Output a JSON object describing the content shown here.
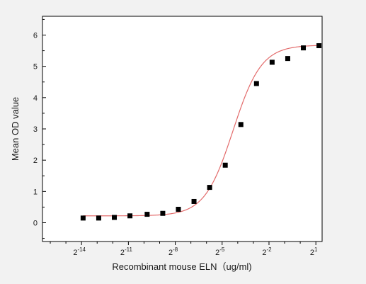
{
  "chart_data": {
    "type": "scatter",
    "title": "",
    "xlabel": "Recombinant mouse ELN（ug/ml)",
    "ylabel": "Mean OD value",
    "x_scale": "log2",
    "xlim_log2": [
      -16.5,
      1.4
    ],
    "ylim": [
      -0.6,
      6.6
    ],
    "x_ticks": [
      {
        "exp": -14,
        "base": "2",
        "sup": "-14"
      },
      {
        "exp": -11,
        "base": "2",
        "sup": "-11"
      },
      {
        "exp": -8,
        "base": "2",
        "sup": "-8"
      },
      {
        "exp": -5,
        "base": "2",
        "sup": "-5"
      },
      {
        "exp": -2,
        "base": "2",
        "sup": "-2"
      },
      {
        "exp": 1,
        "base": "2",
        "sup": "1"
      }
    ],
    "x_minor_ticks_log2": [
      -16,
      -15,
      -13,
      -12,
      -10,
      -9,
      -7,
      -6,
      -4,
      -3,
      -1,
      0
    ],
    "y_ticks": [
      0,
      1,
      2,
      3,
      4,
      5,
      6
    ],
    "grid": false,
    "legend": "none",
    "series": [
      {
        "marker": "square",
        "color": "#000000",
        "x_log2": [
          -13.9,
          -12.9,
          -11.9,
          -10.9,
          -9.8,
          -8.8,
          -7.8,
          -6.8,
          -5.8,
          -4.8,
          -3.8,
          -2.8,
          -1.8,
          -0.8,
          0.2,
          1.2
        ],
        "y": [
          0.15,
          0.15,
          0.17,
          0.22,
          0.27,
          0.3,
          0.43,
          0.68,
          1.13,
          1.84,
          3.14,
          4.45,
          5.13,
          5.25,
          5.59,
          5.66
        ]
      }
    ],
    "fit_curve": {
      "color": "#e36b6b",
      "model": "4PL",
      "bottom": 0.22,
      "top": 5.68,
      "log2_ec50": -4.3,
      "hill_slope_log2": 0.55
    }
  }
}
